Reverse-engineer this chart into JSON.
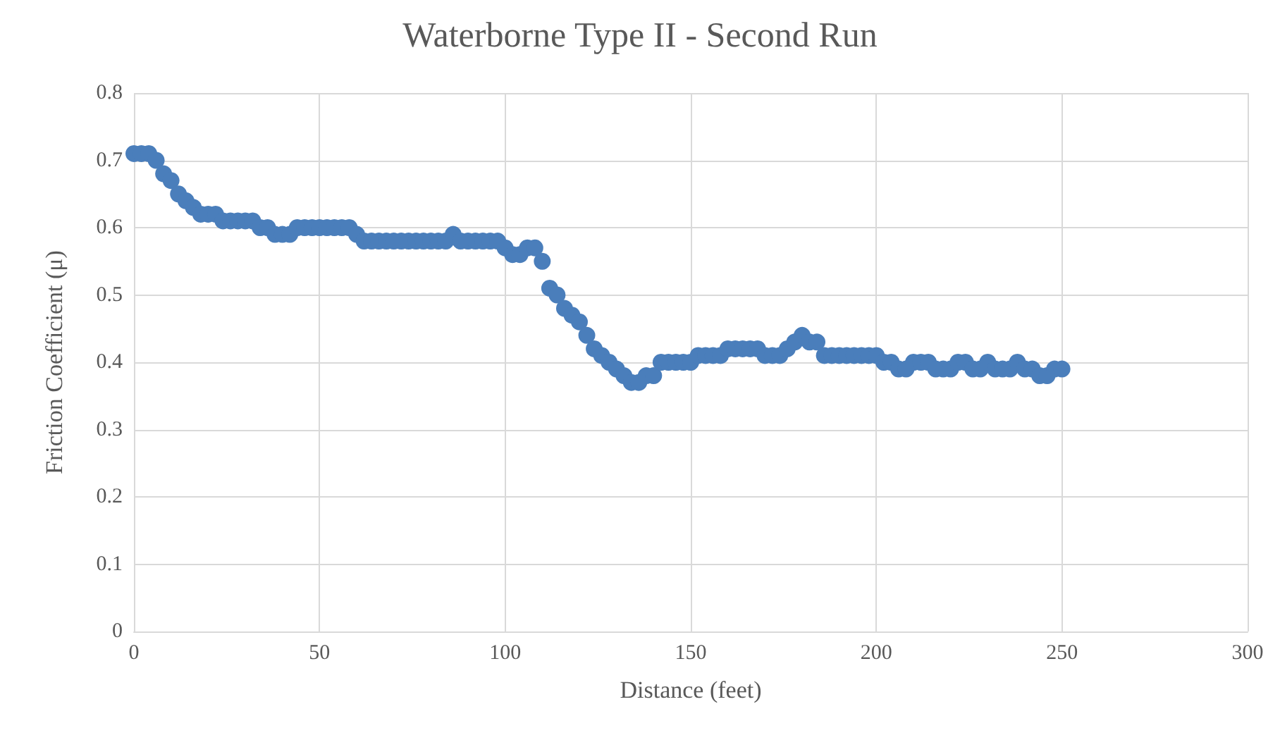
{
  "chart_data": {
    "type": "scatter",
    "title": "Waterborne Type II - Second Run",
    "xlabel": "Distance (feet)",
    "ylabel": "Friction Coefficient (μ)",
    "xlim": [
      0,
      300
    ],
    "xticks": [
      0,
      50,
      100,
      150,
      200,
      250,
      300
    ],
    "ylim": [
      0,
      0.8
    ],
    "yticks": [
      0,
      0.1,
      0.2,
      0.3,
      0.4,
      0.5,
      0.6,
      0.7,
      0.8
    ],
    "grid": true,
    "marker": "circle",
    "series": [
      {
        "color": "#4a7ebb",
        "x": [
          0,
          2,
          4,
          6,
          8,
          10,
          12,
          14,
          16,
          18,
          20,
          22,
          24,
          26,
          28,
          30,
          32,
          34,
          36,
          38,
          40,
          42,
          44,
          46,
          48,
          50,
          52,
          54,
          56,
          58,
          60,
          62,
          64,
          66,
          68,
          70,
          72,
          74,
          76,
          78,
          80,
          82,
          84,
          86,
          88,
          90,
          92,
          94,
          96,
          98,
          100,
          102,
          104,
          106,
          108,
          110,
          112,
          114,
          116,
          118,
          120,
          122,
          124,
          126,
          128,
          130,
          132,
          134,
          136,
          138,
          140,
          142,
          144,
          146,
          148,
          150,
          152,
          154,
          156,
          158,
          160,
          162,
          164,
          166,
          168,
          170,
          172,
          174,
          176,
          178,
          180,
          182,
          184,
          186,
          188,
          190,
          192,
          194,
          196,
          198,
          200,
          202,
          204,
          206,
          208,
          210,
          212,
          214,
          216,
          218,
          220,
          222,
          224,
          226,
          228,
          230,
          232,
          234,
          236,
          238,
          240,
          242,
          244,
          246,
          248,
          250
        ],
        "values": [
          0.71,
          0.71,
          0.71,
          0.7,
          0.68,
          0.67,
          0.65,
          0.64,
          0.63,
          0.62,
          0.62,
          0.62,
          0.61,
          0.61,
          0.61,
          0.61,
          0.61,
          0.6,
          0.6,
          0.59,
          0.59,
          0.59,
          0.6,
          0.6,
          0.6,
          0.6,
          0.6,
          0.6,
          0.6,
          0.6,
          0.59,
          0.58,
          0.58,
          0.58,
          0.58,
          0.58,
          0.58,
          0.58,
          0.58,
          0.58,
          0.58,
          0.58,
          0.58,
          0.59,
          0.58,
          0.58,
          0.58,
          0.58,
          0.58,
          0.58,
          0.57,
          0.56,
          0.56,
          0.57,
          0.57,
          0.55,
          0.51,
          0.5,
          0.48,
          0.47,
          0.46,
          0.44,
          0.42,
          0.41,
          0.4,
          0.39,
          0.38,
          0.37,
          0.37,
          0.38,
          0.38,
          0.4,
          0.4,
          0.4,
          0.4,
          0.4,
          0.41,
          0.41,
          0.41,
          0.41,
          0.42,
          0.42,
          0.42,
          0.42,
          0.42,
          0.41,
          0.41,
          0.41,
          0.42,
          0.43,
          0.44,
          0.43,
          0.43,
          0.41,
          0.41,
          0.41,
          0.41,
          0.41,
          0.41,
          0.41,
          0.41,
          0.4,
          0.4,
          0.39,
          0.39,
          0.4,
          0.4,
          0.4,
          0.39,
          0.39,
          0.39,
          0.4,
          0.4,
          0.39,
          0.39,
          0.4,
          0.39,
          0.39,
          0.39,
          0.4,
          0.39,
          0.39,
          0.38,
          0.38,
          0.39,
          0.39
        ]
      }
    ]
  }
}
